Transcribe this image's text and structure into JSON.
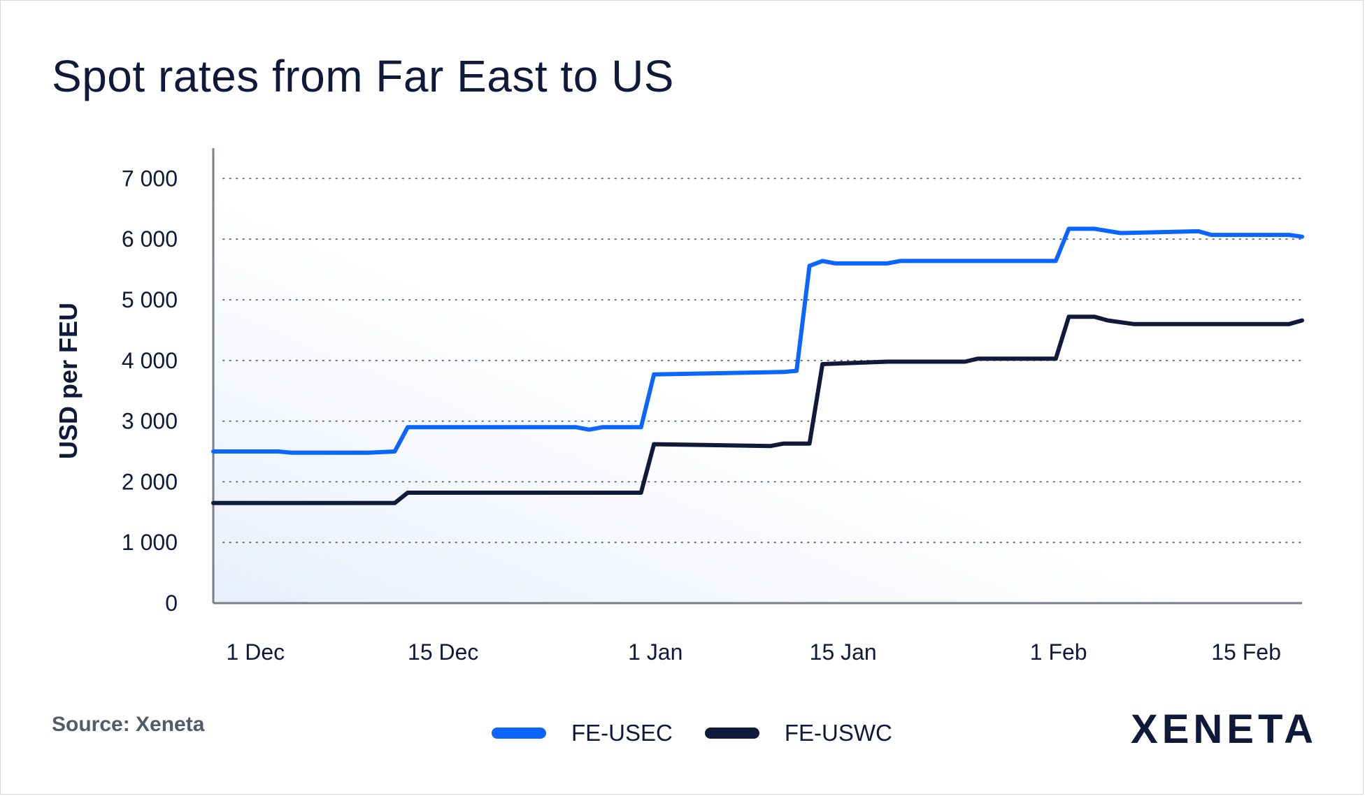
{
  "title": "Spot rates from Far East to US",
  "source": "Source: Xeneta",
  "logo_text": "XENETA",
  "colors": {
    "usec": "#0a66ff",
    "uswc": "#101a3a",
    "text": "#0f1a3a",
    "axis": "#7a7f8a",
    "grid": "#5b6170"
  },
  "chart_data": {
    "type": "line",
    "title": "Spot rates from Far East to US",
    "xlabel": "",
    "ylabel": "USD per FEU",
    "ylim": [
      0,
      7500
    ],
    "yticks": [
      0,
      1000,
      2000,
      3000,
      4000,
      5000,
      6000,
      7000
    ],
    "ytick_labels": [
      "0",
      "1 000",
      "2 000",
      "3 000",
      "4 000",
      "5 000",
      "6 000",
      "7 000"
    ],
    "xlim": [
      "2023-11-30",
      "2024-02-22"
    ],
    "xticks": [
      "2023-12-01",
      "2023-12-15",
      "2024-01-01",
      "2024-01-15",
      "2024-02-01",
      "2024-02-15"
    ],
    "xtick_labels": [
      "1 Dec",
      "15 Dec",
      "1 Jan",
      "15 Jan",
      "1 Feb",
      "15 Feb"
    ],
    "grid": "horizontal dotted",
    "legend": "bottom-center",
    "series": [
      {
        "name": "FE-USEC",
        "color": "#0a66ff",
        "points": [
          [
            "2023-11-30",
            2500
          ],
          [
            "2023-12-05",
            2500
          ],
          [
            "2023-12-06",
            2480
          ],
          [
            "2023-12-12",
            2480
          ],
          [
            "2023-12-14",
            2500
          ],
          [
            "2023-12-15",
            2900
          ],
          [
            "2023-12-28",
            2900
          ],
          [
            "2023-12-29",
            2860
          ],
          [
            "2023-12-30",
            2900
          ],
          [
            "2024-01-02",
            2900
          ],
          [
            "2024-01-03",
            3770
          ],
          [
            "2024-01-13",
            3810
          ],
          [
            "2024-01-14",
            3830
          ],
          [
            "2024-01-15",
            5560
          ],
          [
            "2024-01-16",
            5640
          ],
          [
            "2024-01-17",
            5600
          ],
          [
            "2024-01-21",
            5600
          ],
          [
            "2024-01-22",
            5640
          ],
          [
            "2024-02-03",
            5640
          ],
          [
            "2024-02-04",
            6170
          ],
          [
            "2024-02-06",
            6170
          ],
          [
            "2024-02-08",
            6100
          ],
          [
            "2024-02-14",
            6130
          ],
          [
            "2024-02-15",
            6070
          ],
          [
            "2024-02-21",
            6070
          ],
          [
            "2024-02-22",
            6040
          ]
        ]
      },
      {
        "name": "FE-USWC",
        "color": "#101a3a",
        "points": [
          [
            "2023-11-30",
            1650
          ],
          [
            "2023-12-14",
            1650
          ],
          [
            "2023-12-15",
            1820
          ],
          [
            "2024-01-02",
            1820
          ],
          [
            "2024-01-03",
            2620
          ],
          [
            "2024-01-12",
            2590
          ],
          [
            "2024-01-13",
            2630
          ],
          [
            "2024-01-15",
            2630
          ],
          [
            "2024-01-16",
            3940
          ],
          [
            "2024-01-21",
            3980
          ],
          [
            "2024-01-27",
            3980
          ],
          [
            "2024-01-28",
            4030
          ],
          [
            "2024-02-03",
            4030
          ],
          [
            "2024-02-04",
            4720
          ],
          [
            "2024-02-06",
            4720
          ],
          [
            "2024-02-07",
            4660
          ],
          [
            "2024-02-09",
            4600
          ],
          [
            "2024-02-21",
            4600
          ],
          [
            "2024-02-22",
            4660
          ]
        ]
      }
    ]
  }
}
